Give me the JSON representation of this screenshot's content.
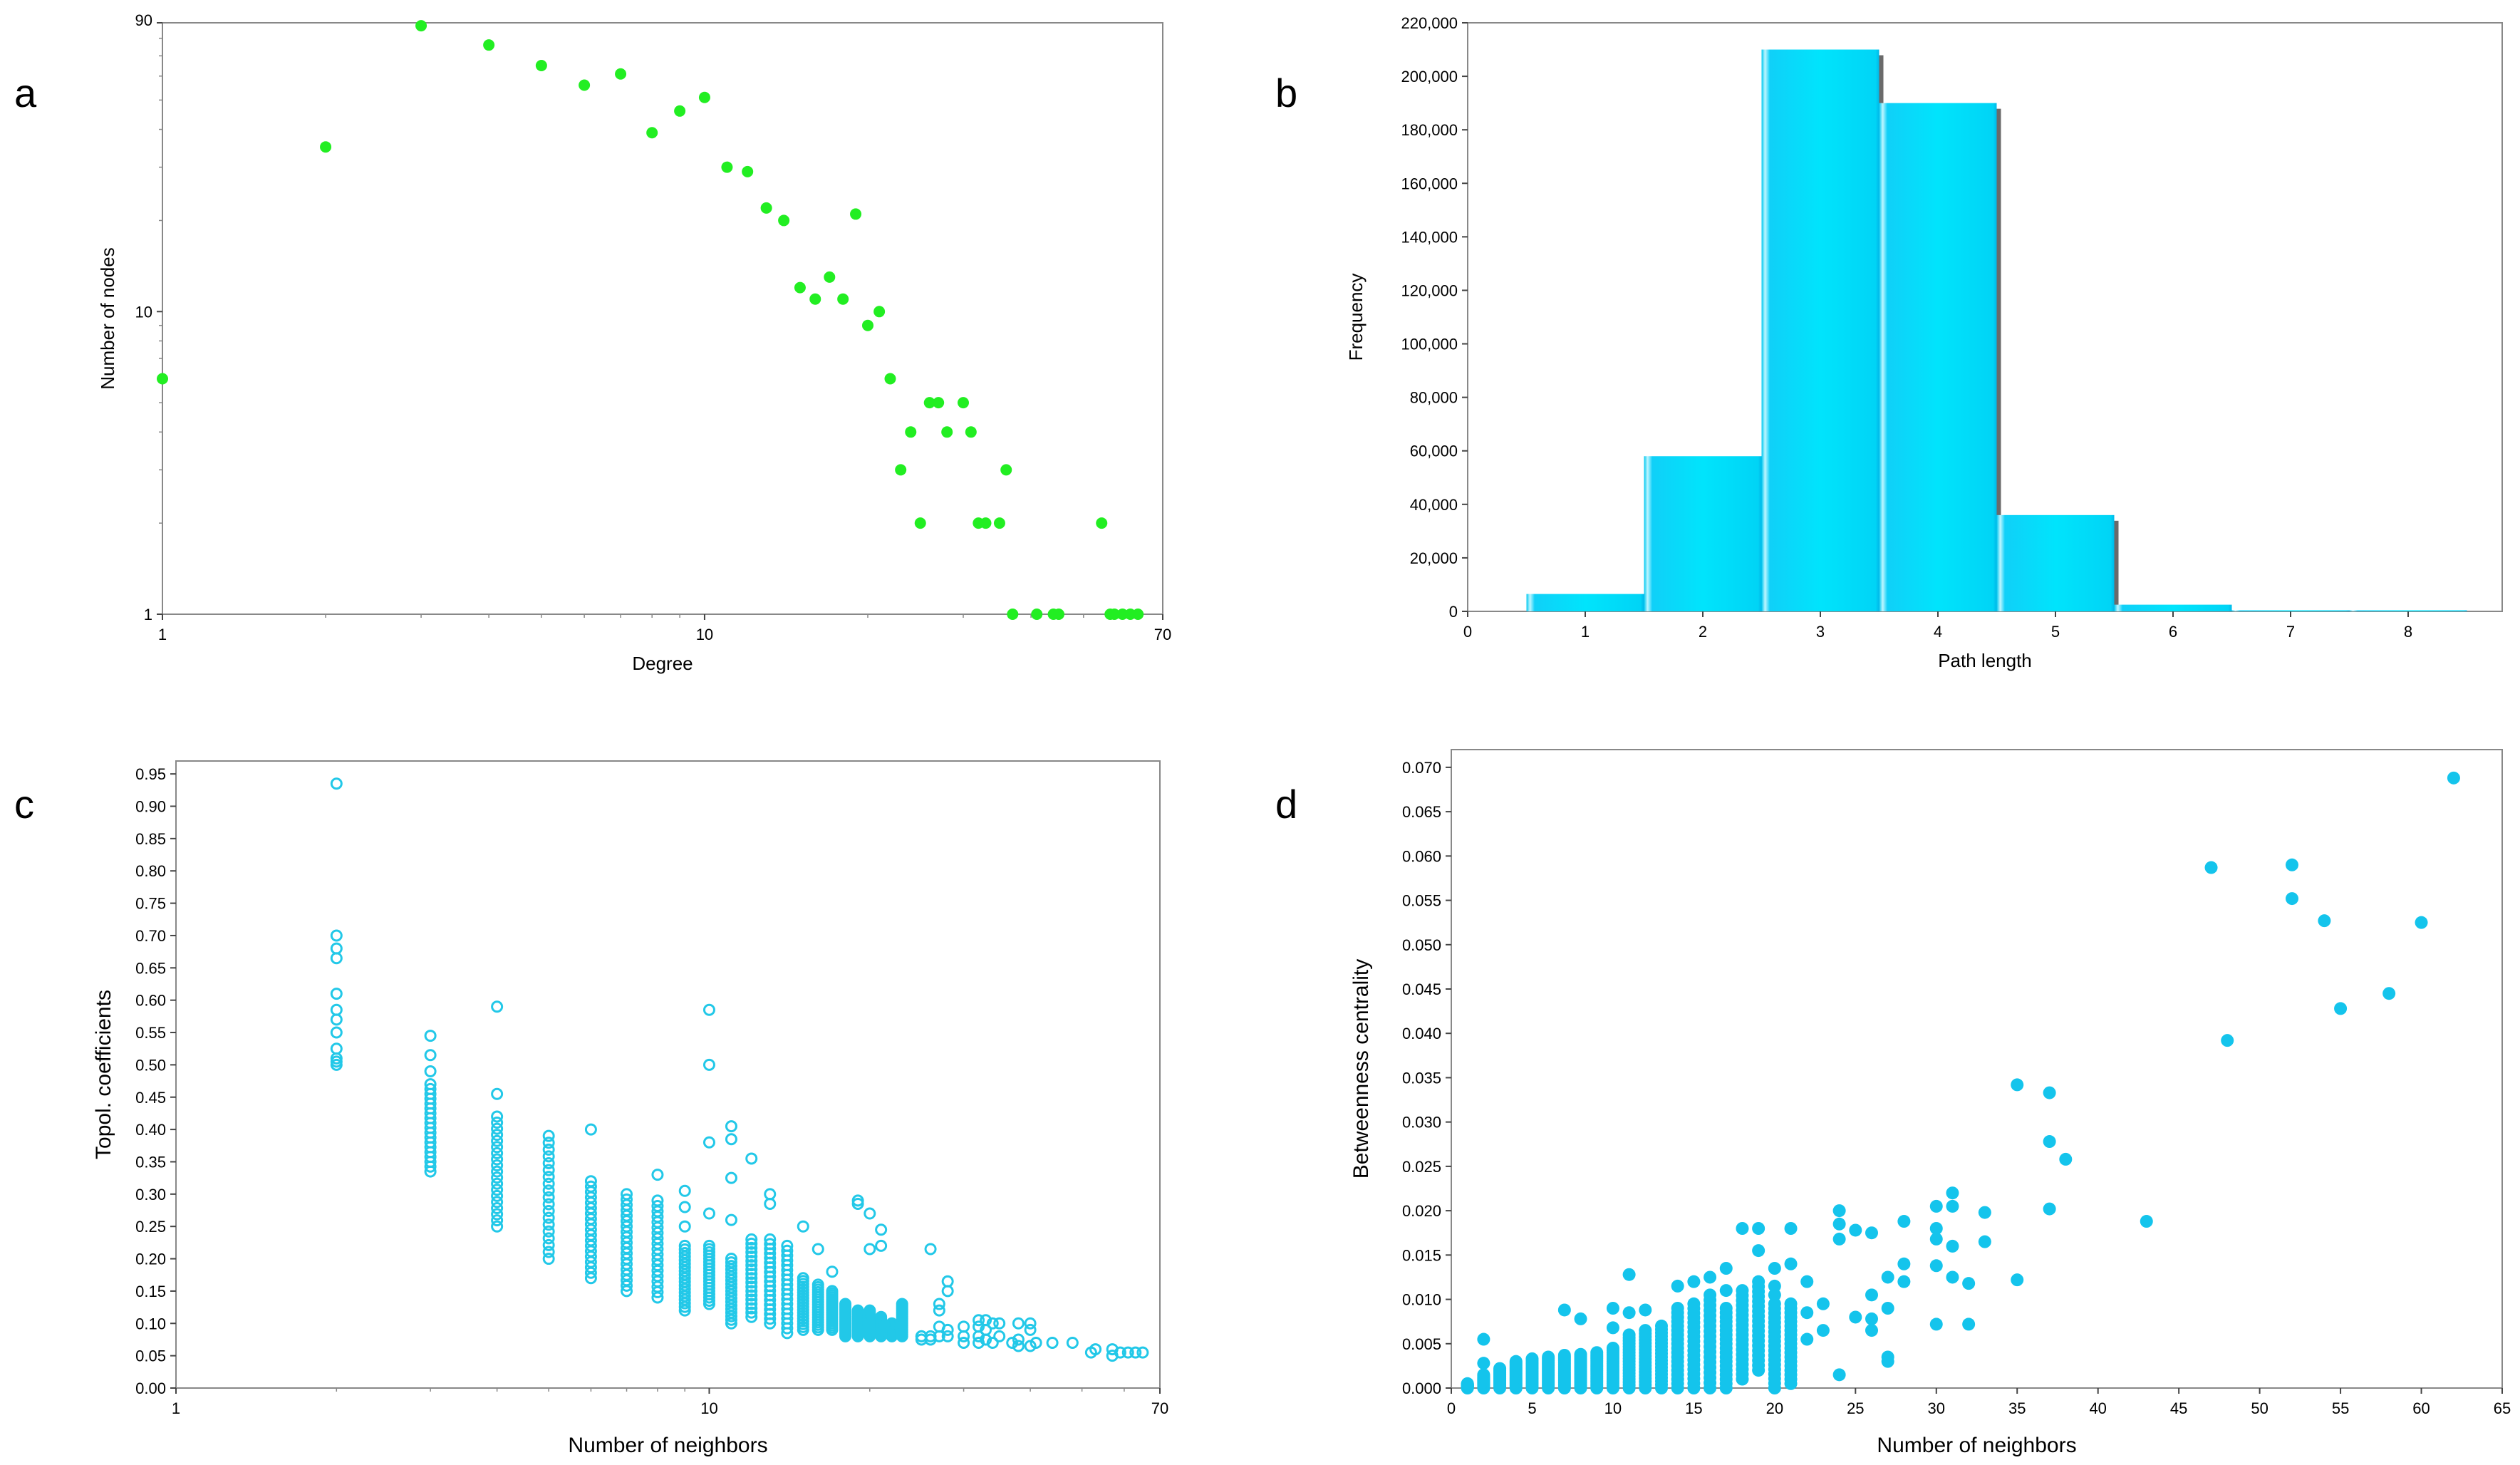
{
  "panels": {
    "a": "a",
    "b": "b",
    "c": "c",
    "d": "d"
  },
  "chart_data": [
    {
      "id": "a",
      "type": "scatter",
      "title": "",
      "xlabel": "Degree",
      "ylabel": "Number of nodes",
      "xscale": "log",
      "yscale": "log",
      "xlim": [
        1,
        70
      ],
      "ylim": [
        1,
        90
      ],
      "xticks": [
        1,
        10,
        70
      ],
      "yticks": [
        1,
        10,
        90
      ],
      "color": "#22ee22",
      "grid": false,
      "points": [
        [
          1,
          6
        ],
        [
          2,
          35
        ],
        [
          3,
          88
        ],
        [
          4,
          76
        ],
        [
          5,
          65
        ],
        [
          6,
          56
        ],
        [
          7,
          61
        ],
        [
          8,
          39
        ],
        [
          9,
          46
        ],
        [
          10,
          51
        ],
        [
          11,
          30
        ],
        [
          12,
          29
        ],
        [
          13,
          22
        ],
        [
          14,
          20
        ],
        [
          15,
          12
        ],
        [
          16,
          11
        ],
        [
          17,
          13
        ],
        [
          18,
          11
        ],
        [
          19,
          21
        ],
        [
          20,
          9
        ],
        [
          21,
          10
        ],
        [
          22,
          6
        ],
        [
          23,
          3
        ],
        [
          24,
          4
        ],
        [
          25,
          2
        ],
        [
          26,
          5
        ],
        [
          27,
          5
        ],
        [
          28,
          4
        ],
        [
          30,
          5
        ],
        [
          31,
          4
        ],
        [
          32,
          2
        ],
        [
          33,
          2
        ],
        [
          35,
          2
        ],
        [
          36,
          3
        ],
        [
          37,
          1
        ],
        [
          41,
          1
        ],
        [
          44,
          1
        ],
        [
          45,
          1
        ],
        [
          54,
          2
        ],
        [
          56,
          1
        ],
        [
          57,
          1
        ],
        [
          59,
          1
        ],
        [
          61,
          1
        ],
        [
          63,
          1
        ]
      ]
    },
    {
      "id": "b",
      "type": "bar",
      "title": "",
      "xlabel": "Path length",
      "ylabel": "Frequency",
      "xlim": [
        0,
        8.8
      ],
      "ylim": [
        0,
        220000
      ],
      "xticks": [
        0,
        1,
        2,
        3,
        4,
        5,
        6,
        7,
        8
      ],
      "yticks": [
        "0",
        "20,000",
        "40,000",
        "60,000",
        "80,000",
        "100,000",
        "120,000",
        "140,000",
        "160,000",
        "180,000",
        "200,000",
        "220,000"
      ],
      "color": "#00e0f8",
      "grid": false,
      "categories": [
        1,
        2,
        3,
        4,
        5,
        6,
        7,
        8
      ],
      "values": [
        6500,
        58000,
        210000,
        190000,
        36000,
        2500,
        300,
        50
      ]
    },
    {
      "id": "c",
      "type": "scatter",
      "title": "",
      "xlabel": "Number of neighbors",
      "ylabel": "Topol. coefficients",
      "xscale": "log",
      "xlim": [
        1,
        70
      ],
      "ylim": [
        0,
        0.97
      ],
      "xticks": [
        1,
        10,
        70
      ],
      "yticks": [
        "0.00",
        "0.05",
        "0.10",
        "0.15",
        "0.20",
        "0.25",
        "0.30",
        "0.35",
        "0.40",
        "0.45",
        "0.50",
        "0.55",
        "0.60",
        "0.65",
        "0.70",
        "0.75",
        "0.80",
        "0.85",
        "0.90",
        "0.95"
      ],
      "color": "#22c8e8",
      "marker": "open-circle",
      "grid": false,
      "groups": [
        {
          "x": 2,
          "y": [
            0.935,
            0.7,
            0.68,
            0.665,
            0.61,
            0.585,
            0.57,
            0.55,
            0.525,
            0.51,
            0.505,
            0.5
          ]
        },
        {
          "x": 3,
          "ymin": 0.335,
          "ymax": 0.47,
          "extra": [
            0.545,
            0.515,
            0.49
          ]
        },
        {
          "x": 4,
          "ymin": 0.25,
          "ymax": 0.42,
          "extra": [
            0.59,
            0.455
          ]
        },
        {
          "x": 5,
          "ymin": 0.2,
          "ymax": 0.39
        },
        {
          "x": 6,
          "ymin": 0.17,
          "ymax": 0.32,
          "extra": [
            0.4
          ]
        },
        {
          "x": 7,
          "ymin": 0.15,
          "ymax": 0.3
        },
        {
          "x": 8,
          "ymin": 0.14,
          "ymax": 0.29,
          "extra": [
            0.33
          ]
        },
        {
          "x": 9,
          "ymin": 0.12,
          "ymax": 0.22,
          "extra": [
            0.305,
            0.28,
            0.25
          ]
        },
        {
          "x": 10,
          "ymin": 0.13,
          "ymax": 0.22,
          "extra": [
            0.585,
            0.5,
            0.38,
            0.27
          ]
        },
        {
          "x": 11,
          "ymin": 0.1,
          "ymax": 0.2,
          "extra": [
            0.405,
            0.385,
            0.325,
            0.26
          ]
        },
        {
          "x": 12,
          "ymin": 0.11,
          "ymax": 0.23,
          "extra": [
            0.355
          ]
        },
        {
          "x": 13,
          "ymin": 0.1,
          "ymax": 0.23,
          "extra": [
            0.3,
            0.285
          ]
        },
        {
          "x": 14,
          "ymin": 0.085,
          "ymax": 0.22
        },
        {
          "x": 15,
          "ymin": 0.09,
          "ymax": 0.17,
          "extra": [
            0.25
          ]
        },
        {
          "x": 16,
          "ymin": 0.09,
          "ymax": 0.16,
          "extra": [
            0.215
          ]
        },
        {
          "x": 17,
          "ymin": 0.09,
          "ymax": 0.15,
          "extra": [
            0.18
          ]
        },
        {
          "x": 18,
          "ymin": 0.08,
          "ymax": 0.13
        },
        {
          "x": 19,
          "ymin": 0.08,
          "ymax": 0.12,
          "extra": [
            0.29,
            0.285
          ]
        },
        {
          "x": 20,
          "ymin": 0.08,
          "ymax": 0.12,
          "extra": [
            0.27,
            0.215
          ]
        },
        {
          "x": 21,
          "ymin": 0.08,
          "ymax": 0.11,
          "extra": [
            0.245,
            0.22
          ]
        },
        {
          "x": 22,
          "ymin": 0.08,
          "ymax": 0.1
        },
        {
          "x": 23,
          "ymin": 0.08,
          "ymax": 0.13
        },
        {
          "x": 25,
          "y": [
            0.075,
            0.08,
            0.08
          ]
        },
        {
          "x": 26,
          "y": [
            0.075,
            0.08,
            0.215
          ]
        },
        {
          "x": 27,
          "y": [
            0.08,
            0.095,
            0.12,
            0.13
          ]
        },
        {
          "x": 28,
          "y": [
            0.08,
            0.09,
            0.15,
            0.165
          ]
        },
        {
          "x": 30,
          "y": [
            0.07,
            0.08,
            0.095
          ]
        },
        {
          "x": 32,
          "y": [
            0.07,
            0.08,
            0.095,
            0.105
          ]
        },
        {
          "x": 33,
          "y": [
            0.075,
            0.09,
            0.105
          ]
        },
        {
          "x": 34,
          "y": [
            0.07,
            0.1
          ]
        },
        {
          "x": 35,
          "y": [
            0.08,
            0.1
          ]
        },
        {
          "x": 37,
          "y": [
            0.07
          ]
        },
        {
          "x": 38,
          "y": [
            0.065,
            0.075,
            0.1
          ]
        },
        {
          "x": 40,
          "y": [
            0.065,
            0.09,
            0.1
          ]
        },
        {
          "x": 41,
          "y": [
            0.07
          ]
        },
        {
          "x": 44,
          "y": [
            0.07
          ]
        },
        {
          "x": 48,
          "y": [
            0.07
          ]
        },
        {
          "x": 52,
          "y": [
            0.055
          ]
        },
        {
          "x": 53,
          "y": [
            0.06
          ]
        },
        {
          "x": 57,
          "y": [
            0.05,
            0.06
          ]
        },
        {
          "x": 59,
          "y": [
            0.055
          ]
        },
        {
          "x": 61,
          "y": [
            0.055
          ]
        },
        {
          "x": 63,
          "y": [
            0.055
          ]
        },
        {
          "x": 65,
          "y": [
            0.055
          ]
        }
      ]
    },
    {
      "id": "d",
      "type": "scatter",
      "title": "",
      "xlabel": "Number of neighbors",
      "ylabel": "Betweenness centrality",
      "xlim": [
        0,
        65
      ],
      "ylim": [
        0,
        0.072
      ],
      "xticks": [
        0,
        5,
        10,
        15,
        20,
        25,
        30,
        35,
        40,
        45,
        50,
        55,
        60,
        65
      ],
      "yticks": [
        "0.000",
        "0.005",
        "0.010",
        "0.015",
        "0.020",
        "0.025",
        "0.030",
        "0.035",
        "0.040",
        "0.045",
        "0.050",
        "0.055",
        "0.060",
        "0.065",
        "0.070"
      ],
      "color": "#14c4ec",
      "marker": "filled-circle",
      "grid": false,
      "groups": [
        {
          "x": 1,
          "ymin": 0.0,
          "ymax": 0.0005
        },
        {
          "x": 2,
          "ymin": 0.0,
          "ymax": 0.0015,
          "extra": [
            0.0055,
            0.0028
          ]
        },
        {
          "x": 3,
          "ymin": 0.0,
          "ymax": 0.0022
        },
        {
          "x": 4,
          "ymin": 0.0,
          "ymax": 0.003
        },
        {
          "x": 5,
          "ymin": 0.0,
          "ymax": 0.0033
        },
        {
          "x": 6,
          "ymin": 0.0,
          "ymax": 0.0035
        },
        {
          "x": 7,
          "ymin": 0.0,
          "ymax": 0.0037,
          "extra": [
            0.0088
          ]
        },
        {
          "x": 8,
          "ymin": 0.0,
          "ymax": 0.0038,
          "extra": [
            0.0078
          ]
        },
        {
          "x": 9,
          "ymin": 0.0,
          "ymax": 0.004
        },
        {
          "x": 10,
          "ymin": 0.0,
          "ymax": 0.0045,
          "extra": [
            0.009,
            0.0068
          ]
        },
        {
          "x": 11,
          "ymin": 0.0,
          "ymax": 0.006,
          "extra": [
            0.0128,
            0.0085
          ]
        },
        {
          "x": 12,
          "ymin": 0.0,
          "ymax": 0.0065,
          "extra": [
            0.0088
          ]
        },
        {
          "x": 13,
          "ymin": 0.0,
          "ymax": 0.007
        },
        {
          "x": 14,
          "ymin": 0.0,
          "ymax": 0.009,
          "extra": [
            0.0115
          ]
        },
        {
          "x": 15,
          "ymin": 0.0,
          "ymax": 0.0095,
          "extra": [
            0.012
          ]
        },
        {
          "x": 16,
          "ymin": 0.0,
          "ymax": 0.0105,
          "extra": [
            0.0125
          ]
        },
        {
          "x": 17,
          "ymin": 0.0,
          "ymax": 0.009,
          "extra": [
            0.0135,
            0.011
          ]
        },
        {
          "x": 18,
          "ymin": 0.001,
          "ymax": 0.011,
          "extra": [
            0.018
          ]
        },
        {
          "x": 19,
          "ymin": 0.002,
          "ymax": 0.012,
          "extra": [
            0.018,
            0.0155
          ]
        },
        {
          "x": 20,
          "ymin": 0.0,
          "ymax": 0.0095,
          "extra": [
            0.0135,
            0.0115,
            0.0105
          ]
        },
        {
          "x": 21,
          "ymin": 0.0005,
          "ymax": 0.0095,
          "extra": [
            0.018,
            0.014
          ]
        },
        {
          "x": 22,
          "y": [
            0.0055,
            0.0085,
            0.012
          ]
        },
        {
          "x": 23,
          "y": [
            0.0065,
            0.0095
          ]
        },
        {
          "x": 24,
          "y": [
            0.0015,
            0.0168,
            0.0185,
            0.02
          ]
        },
        {
          "x": 25,
          "y": [
            0.008,
            0.0178
          ]
        },
        {
          "x": 26,
          "y": [
            0.0065,
            0.0078,
            0.0105,
            0.0175
          ]
        },
        {
          "x": 27,
          "y": [
            0.003,
            0.0035,
            0.009,
            0.0125
          ]
        },
        {
          "x": 28,
          "y": [
            0.012,
            0.014,
            0.0188
          ]
        },
        {
          "x": 30,
          "y": [
            0.0072,
            0.0138,
            0.0168,
            0.018,
            0.0205
          ]
        },
        {
          "x": 31,
          "y": [
            0.0125,
            0.016,
            0.0205,
            0.022
          ]
        },
        {
          "x": 32,
          "y": [
            0.0072,
            0.0118
          ]
        },
        {
          "x": 33,
          "y": [
            0.0165,
            0.0198
          ]
        },
        {
          "x": 35,
          "y": [
            0.0122,
            0.0342
          ]
        },
        {
          "x": 37,
          "y": [
            0.0202,
            0.0278,
            0.0333
          ]
        },
        {
          "x": 38,
          "y": [
            0.0258
          ]
        },
        {
          "x": 43,
          "y": [
            0.0188
          ]
        },
        {
          "x": 47,
          "y": [
            0.0587
          ]
        },
        {
          "x": 48,
          "y": [
            0.0392
          ]
        },
        {
          "x": 52,
          "y": [
            0.0552,
            0.059
          ]
        },
        {
          "x": 54,
          "y": [
            0.0527
          ]
        },
        {
          "x": 55,
          "y": [
            0.0428
          ]
        },
        {
          "x": 58,
          "y": [
            0.0445
          ]
        },
        {
          "x": 60,
          "y": [
            0.0525
          ]
        },
        {
          "x": 62,
          "y": [
            0.0688
          ]
        }
      ]
    }
  ]
}
